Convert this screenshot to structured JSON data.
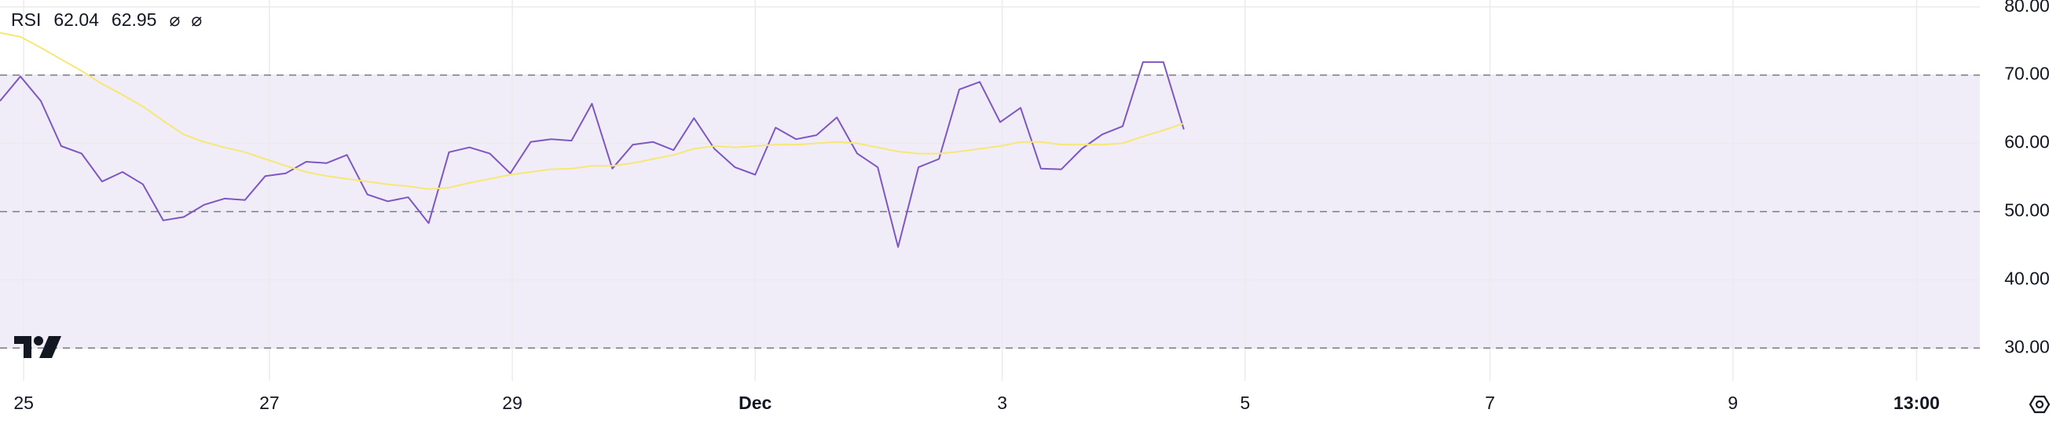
{
  "chart_data": {
    "type": "line",
    "legend": {
      "title": "RSI",
      "values": [
        "62.04",
        "62.95"
      ],
      "symbols": [
        "⌀",
        "⌀"
      ]
    },
    "x": [
      0,
      1,
      2,
      3,
      4,
      5,
      6,
      7,
      8,
      9,
      10,
      11,
      12,
      13,
      14,
      15,
      16,
      17,
      18,
      19,
      20,
      21,
      22,
      23,
      24,
      25,
      26,
      27,
      28,
      29,
      30,
      31,
      32,
      33,
      34,
      35,
      36,
      37,
      38,
      39,
      40,
      41,
      42,
      43,
      44,
      45,
      46,
      47,
      48,
      49,
      50,
      51,
      52,
      53,
      54,
      55,
      56,
      57,
      58
    ],
    "series": [
      {
        "color": "#7e57c2",
        "values": [
          66.2,
          69.8,
          66.2,
          59.6,
          58.5,
          54.4,
          55.8,
          54.0,
          48.7,
          49.2,
          51.0,
          51.9,
          51.7,
          55.2,
          55.6,
          57.3,
          57.1,
          58.3,
          52.5,
          51.5,
          52.1,
          48.3,
          58.7,
          59.4,
          58.5,
          55.6,
          60.2,
          60.6,
          60.4,
          65.8,
          56.3,
          59.8,
          60.2,
          59.0,
          63.7,
          59.2,
          56.5,
          55.4,
          62.3,
          60.6,
          61.2,
          63.8,
          58.5,
          56.5,
          44.8,
          56.5,
          57.7,
          67.9,
          69.0,
          63.1,
          65.2,
          56.3,
          56.2,
          59.2,
          61.3,
          62.5,
          71.9,
          71.9,
          62.04
        ]
      },
      {
        "color": "#f7e774",
        "values": [
          76.2,
          75.6,
          74.0,
          72.3,
          70.6,
          68.7,
          67.1,
          65.4,
          63.3,
          61.3,
          60.2,
          59.4,
          58.7,
          57.7,
          56.7,
          55.8,
          55.2,
          54.8,
          54.4,
          54.0,
          53.7,
          53.3,
          53.5,
          54.2,
          54.8,
          55.4,
          55.8,
          56.2,
          56.3,
          56.7,
          56.7,
          57.1,
          57.7,
          58.3,
          59.2,
          59.6,
          59.4,
          59.6,
          59.8,
          59.8,
          60.0,
          60.2,
          60.0,
          59.4,
          58.8,
          58.5,
          58.5,
          58.8,
          59.2,
          59.6,
          60.2,
          60.2,
          59.8,
          59.8,
          59.8,
          60.0,
          61.0,
          61.9,
          62.95
        ]
      }
    ],
    "xlim": [
      0,
      97.0
    ],
    "xticks": [
      {
        "value": 1.16,
        "label": "25"
      },
      {
        "value": 13.2,
        "label": "27"
      },
      {
        "value": 25.1,
        "label": "29"
      },
      {
        "value": 37.0,
        "label": "Dec"
      },
      {
        "value": 49.1,
        "label": "3"
      },
      {
        "value": 61.0,
        "label": "5"
      },
      {
        "value": 73.0,
        "label": "7"
      },
      {
        "value": 84.9,
        "label": "9"
      },
      {
        "value": 93.9,
        "label": "13:00"
      }
    ],
    "ylim": [
      25.2,
      81
    ],
    "yticks": [
      {
        "value": 30,
        "label": "30.00"
      },
      {
        "value": 40,
        "label": "40.00"
      },
      {
        "value": 50,
        "label": "50.00"
      },
      {
        "value": 60,
        "label": "60.00"
      },
      {
        "value": 70,
        "label": "70.00"
      },
      {
        "value": 80,
        "label": "80.00"
      }
    ],
    "band": [
      30,
      70
    ],
    "band_color": "#f0ecf8",
    "hlines": [
      70,
      50,
      30
    ],
    "grid": true
  }
}
